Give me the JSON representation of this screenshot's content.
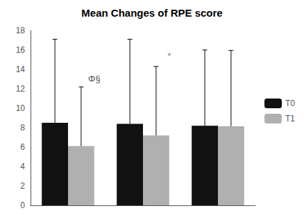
{
  "chart_data": {
    "type": "bar",
    "title": "Mean Changes of RPE score",
    "categories": [
      null,
      null,
      null
    ],
    "series": [
      {
        "name": "T0",
        "color": "#111111",
        "values": [
          8.5,
          8.4,
          8.2
        ],
        "errors": [
          8.6,
          8.7,
          7.8
        ]
      },
      {
        "name": "T1",
        "color": "#b0b0b0",
        "values": [
          6.1,
          7.2,
          8.15
        ],
        "errors": [
          6.1,
          7.1,
          7.8
        ]
      }
    ],
    "ylim": [
      0,
      18
    ],
    "yticks": [
      0,
      2,
      4,
      6,
      8,
      10,
      12,
      14,
      16,
      18
    ],
    "grid": false,
    "legend": "right",
    "tick_labels": "y",
    "annotations": [
      {
        "text": "Φ§",
        "category": 0,
        "y": 12.6,
        "color": "#555555"
      },
      {
        "text": "*",
        "category": 1,
        "y": 14.9,
        "color": "#888888"
      }
    ]
  }
}
